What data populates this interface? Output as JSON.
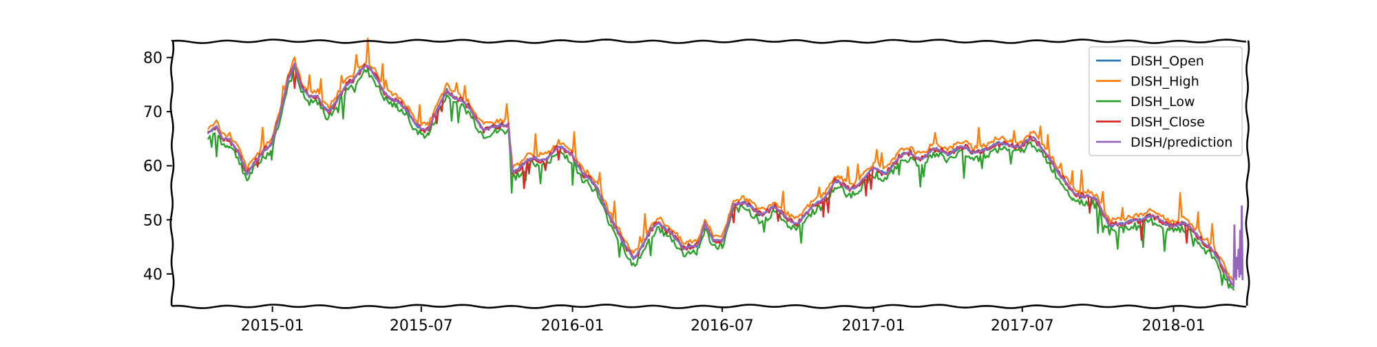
{
  "chart_data": {
    "type": "line",
    "title": "",
    "xlabel": "",
    "ylabel": "",
    "x_range": [
      "2014-09-01",
      "2018-04-01"
    ],
    "ylim": [
      34,
      83
    ],
    "x_ticks": [
      {
        "date": "2015-01-01",
        "label": "2015-01"
      },
      {
        "date": "2015-07-01",
        "label": "2015-07"
      },
      {
        "date": "2016-01-01",
        "label": "2016-01"
      },
      {
        "date": "2016-07-01",
        "label": "2016-07"
      },
      {
        "date": "2017-01-01",
        "label": "2017-01"
      },
      {
        "date": "2017-07-01",
        "label": "2017-07"
      },
      {
        "date": "2018-01-01",
        "label": "2018-01"
      }
    ],
    "y_ticks": [
      40,
      50,
      60,
      70,
      80
    ],
    "grid": false,
    "legend_position": "top-right",
    "style": "xkcd",
    "series": [
      {
        "name": "DISH_Open",
        "color": "#1f77b4",
        "offset": 0.0,
        "noise": 0.6
      },
      {
        "name": "DISH_High",
        "color": "#ff7f0e",
        "offset": 0.9,
        "noise": 0.9
      },
      {
        "name": "DISH_Low",
        "color": "#2ca02c",
        "offset": -1.1,
        "noise": 1.4
      },
      {
        "name": "DISH_Close",
        "color": "#d62728",
        "offset": 0.0,
        "noise": 1.2
      },
      {
        "name": "DISH/prediction",
        "color": "#9467bd",
        "offset": 0.0,
        "noise": 0.2
      }
    ],
    "base_path": [
      [
        "2014-10-15",
        66
      ],
      [
        "2014-10-25",
        66.5
      ],
      [
        "2014-11-01",
        64.5
      ],
      [
        "2014-11-10",
        65
      ],
      [
        "2014-11-20",
        62.5
      ],
      [
        "2014-12-01",
        58
      ],
      [
        "2014-12-10",
        61
      ],
      [
        "2014-12-20",
        63.5
      ],
      [
        "2014-12-31",
        64
      ],
      [
        "2015-01-10",
        69
      ],
      [
        "2015-01-20",
        76
      ],
      [
        "2015-01-28",
        79
      ],
      [
        "2015-02-05",
        74
      ],
      [
        "2015-02-15",
        72
      ],
      [
        "2015-02-25",
        73
      ],
      [
        "2015-03-10",
        70.5
      ],
      [
        "2015-03-20",
        72
      ],
      [
        "2015-04-01",
        75
      ],
      [
        "2015-04-15",
        77.5
      ],
      [
        "2015-04-25",
        78
      ],
      [
        "2015-05-05",
        76
      ],
      [
        "2015-05-15",
        74
      ],
      [
        "2015-06-01",
        72
      ],
      [
        "2015-06-15",
        70
      ],
      [
        "2015-07-01",
        67.5
      ],
      [
        "2015-07-10",
        66.5
      ],
      [
        "2015-07-20",
        69.5
      ],
      [
        "2015-08-01",
        74
      ],
      [
        "2015-08-15",
        72
      ],
      [
        "2015-09-01",
        70
      ],
      [
        "2015-09-15",
        67.5
      ],
      [
        "2015-10-01",
        67
      ],
      [
        "2015-10-15",
        67.5
      ],
      [
        "2015-10-20",
        59
      ],
      [
        "2015-11-01",
        59.5
      ],
      [
        "2015-11-15",
        61
      ],
      [
        "2015-12-01",
        62
      ],
      [
        "2015-12-15",
        63.5
      ],
      [
        "2016-01-01",
        62.5
      ],
      [
        "2016-01-15",
        58
      ],
      [
        "2016-02-01",
        55
      ],
      [
        "2016-02-15",
        51
      ],
      [
        "2016-03-01",
        46
      ],
      [
        "2016-03-15",
        43.5
      ],
      [
        "2016-04-01",
        47
      ],
      [
        "2016-04-15",
        49
      ],
      [
        "2016-05-01",
        47.5
      ],
      [
        "2016-05-15",
        44
      ],
      [
        "2016-06-01",
        46
      ],
      [
        "2016-06-10",
        50
      ],
      [
        "2016-06-20",
        46
      ],
      [
        "2016-07-01",
        46
      ],
      [
        "2016-07-15",
        53
      ],
      [
        "2016-08-01",
        52
      ],
      [
        "2016-08-15",
        51.5
      ],
      [
        "2016-09-01",
        52.5
      ],
      [
        "2016-09-15",
        51
      ],
      [
        "2016-10-01",
        49.5
      ],
      [
        "2016-10-15",
        51
      ],
      [
        "2016-11-01",
        54
      ],
      [
        "2016-11-15",
        57
      ],
      [
        "2016-12-01",
        56
      ],
      [
        "2016-12-15",
        57.5
      ],
      [
        "2017-01-01",
        59
      ],
      [
        "2017-01-15",
        58.5
      ],
      [
        "2017-02-01",
        61
      ],
      [
        "2017-02-15",
        62.5
      ],
      [
        "2017-03-01",
        62
      ],
      [
        "2017-03-15",
        63
      ],
      [
        "2017-04-01",
        62.5
      ],
      [
        "2017-04-15",
        63
      ],
      [
        "2017-05-01",
        62
      ],
      [
        "2017-05-15",
        63.5
      ],
      [
        "2017-06-01",
        64
      ],
      [
        "2017-06-15",
        64.5
      ],
      [
        "2017-07-01",
        63.5
      ],
      [
        "2017-07-15",
        64.5
      ],
      [
        "2017-08-01",
        62
      ],
      [
        "2017-08-15",
        58
      ],
      [
        "2017-09-01",
        56
      ],
      [
        "2017-09-15",
        54.5
      ],
      [
        "2017-10-01",
        53
      ],
      [
        "2017-10-15",
        49
      ],
      [
        "2017-11-01",
        48.5
      ],
      [
        "2017-11-15",
        50.5
      ],
      [
        "2017-12-01",
        51
      ],
      [
        "2017-12-15",
        50
      ],
      [
        "2018-01-01",
        49
      ],
      [
        "2018-01-15",
        48.5
      ],
      [
        "2018-02-01",
        47
      ],
      [
        "2018-02-15",
        45
      ],
      [
        "2018-03-01",
        41.5
      ],
      [
        "2018-03-10",
        39.5
      ],
      [
        "2018-03-15",
        38.5
      ]
    ],
    "prediction_tail": [
      [
        "2018-03-15",
        38.5
      ],
      [
        "2018-03-16",
        49.0
      ],
      [
        "2018-03-17",
        40.0
      ],
      [
        "2018-03-18",
        39.0
      ],
      [
        "2018-03-19",
        43.0
      ],
      [
        "2018-03-20",
        41.0
      ],
      [
        "2018-03-21",
        44.5
      ],
      [
        "2018-03-22",
        39.5
      ],
      [
        "2018-03-23",
        48.0
      ],
      [
        "2018-03-24",
        40.0
      ],
      [
        "2018-03-25",
        52.5
      ],
      [
        "2018-03-26",
        39.0
      ]
    ]
  }
}
